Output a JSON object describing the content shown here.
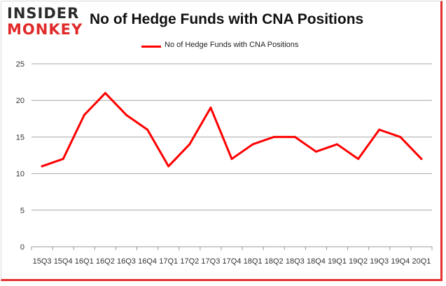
{
  "brand": {
    "logo_top": "INSIDER",
    "logo_bottom": "MONKEY",
    "accent": "#e02a2a"
  },
  "chart_data": {
    "type": "line",
    "title": "No of Hedge Funds with CNA Positions",
    "xlabel": "",
    "ylabel": "",
    "legend_position": "top-center",
    "grid": true,
    "ylim": [
      0,
      25
    ],
    "yticks": [
      0,
      5,
      10,
      15,
      20,
      25
    ],
    "categories": [
      "15Q3",
      "15Q4",
      "16Q1",
      "16Q2",
      "16Q3",
      "16Q4",
      "17Q1",
      "17Q2",
      "17Q3",
      "17Q4",
      "18Q1",
      "18Q2",
      "18Q3",
      "18Q4",
      "19Q1",
      "19Q2",
      "19Q3",
      "19Q4",
      "20Q1"
    ],
    "series": [
      {
        "name": "No of Hedge Funds with CNA  Positions",
        "color": "#ff0000",
        "values": [
          11,
          12,
          18,
          21,
          18,
          16,
          11,
          14,
          19,
          12,
          14,
          15,
          15,
          13,
          14,
          12,
          16,
          15,
          12
        ]
      }
    ]
  }
}
